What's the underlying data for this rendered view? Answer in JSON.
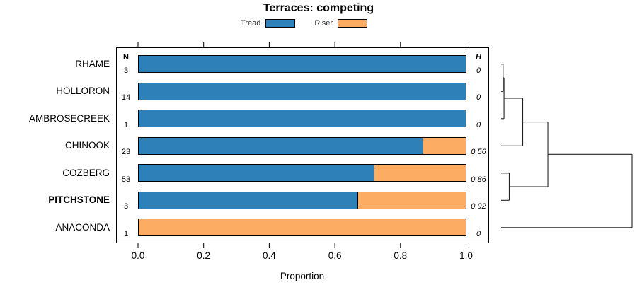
{
  "title": "Terraces: competing",
  "chart_data": {
    "type": "bar",
    "orientation": "horizontal",
    "stacked": true,
    "title": "Terraces: competing",
    "xlabel": "Proportion",
    "xlim": [
      0,
      1
    ],
    "xticks": [
      0,
      0.2,
      0.4,
      0.6,
      0.8,
      1.0
    ],
    "xtick_labels": [
      "0.0",
      "0.2",
      "0.4",
      "0.6",
      "0.8",
      "1.0"
    ],
    "grid": false,
    "legend_position": "top",
    "n_header": "N",
    "h_header": "H",
    "categories": [
      "RHAME",
      "HOLLORON",
      "AMBROSECREEK",
      "CHINOOK",
      "COZBERG",
      "PITCHSTONE",
      "ANACONDA"
    ],
    "bold_categories": [
      "PITCHSTONE"
    ],
    "n": [
      3,
      14,
      1,
      23,
      53,
      3,
      1
    ],
    "h": [
      "0",
      "0",
      "0",
      "0.56",
      "0.86",
      "0.92",
      "0"
    ],
    "series": [
      {
        "name": "Tread",
        "color": "#2e80b9",
        "values": [
          1.0,
          1.0,
          1.0,
          0.87,
          0.72,
          0.67,
          0.0
        ]
      },
      {
        "name": "Riser",
        "color": "#fcac63",
        "values": [
          0.0,
          0.0,
          0.0,
          0.13,
          0.28,
          0.33,
          1.0
        ]
      }
    ],
    "dendrogram": {
      "leaves": [
        "RHAME",
        "HOLLORON",
        "AMBROSECREEK",
        "CHINOOK",
        "COZBERG",
        "PITCHSTONE",
        "ANACONDA"
      ],
      "merges": [
        {
          "a": "RHAME",
          "b": "HOLLORON",
          "height": 0.015
        },
        {
          "a": "m0",
          "b": "AMBROSECREEK",
          "height": 0.022
        },
        {
          "a": "m1",
          "b": "CHINOOK",
          "height": 0.165
        },
        {
          "a": "COZBERG",
          "b": "PITCHSTONE",
          "height": 0.062
        },
        {
          "a": "m2",
          "b": "m3",
          "height": 0.357
        },
        {
          "a": "m4",
          "b": "ANACONDA",
          "height": 1.0
        }
      ]
    },
    "line_color": "#222222"
  }
}
